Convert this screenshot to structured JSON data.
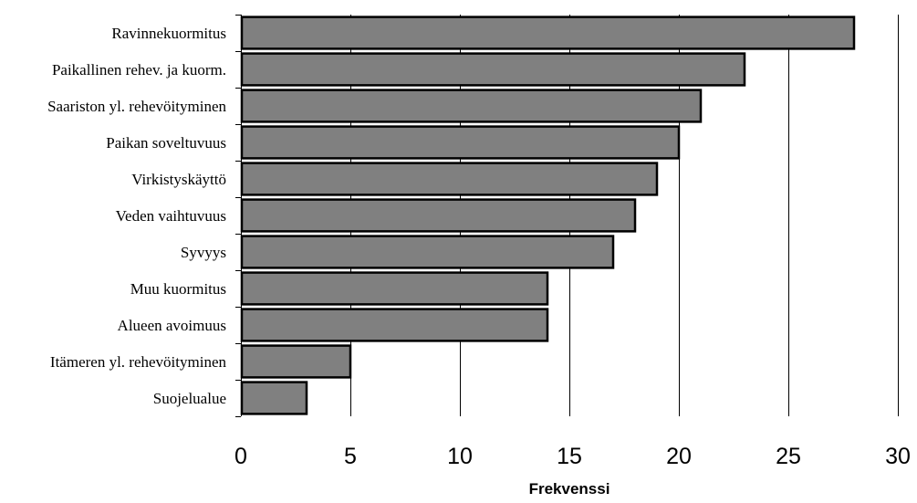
{
  "chart_data": {
    "type": "bar",
    "orientation": "horizontal",
    "categories": [
      "Ravinnekuormitus",
      "Paikallinen rehev. ja kuorm.",
      "Saariston yl. rehevöityminen",
      "Paikan soveltuvuus",
      "Virkistyskäyttö",
      "Veden vaihtuvuus",
      "Syvyys",
      "Muu kuormitus",
      "Alueen avoimuus",
      "Itämeren yl. rehevöityminen",
      "Suojelualue"
    ],
    "values": [
      28,
      23,
      21,
      20,
      19,
      18,
      17,
      14,
      14,
      5,
      3
    ],
    "title": "",
    "xlabel": "Frekvenssi",
    "ylabel": "",
    "xlim": [
      0,
      30
    ],
    "xticks": [
      0,
      5,
      10,
      15,
      20,
      25,
      30
    ],
    "grid": "vertical",
    "legend": "none",
    "colors": {
      "bar_fill": "#808080",
      "bar_stroke": "#000000",
      "grid": "#000000",
      "axis": "#000000"
    }
  }
}
